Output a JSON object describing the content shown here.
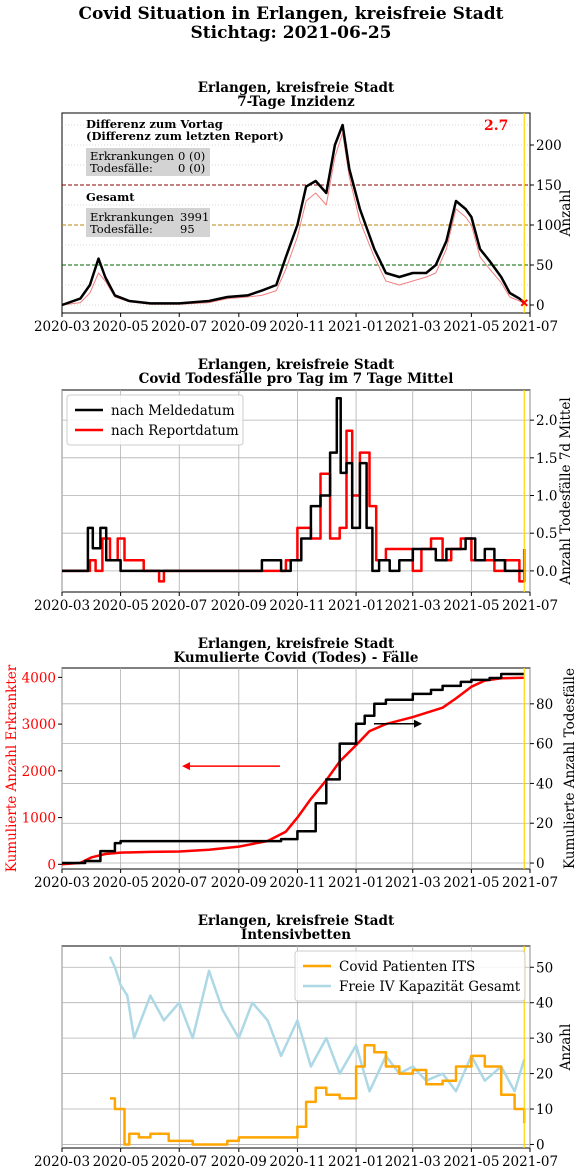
{
  "suptitle": {
    "line1": "Covid Situation in Erlangen, kreisfreie Stadt",
    "line2": "Stichtag: 2021-06-25"
  },
  "x_tick_labels": [
    "2020-03",
    "2020-05",
    "2020-07",
    "2020-09",
    "2020-11",
    "2021-01",
    "2021-03",
    "2021-05",
    "2021-07"
  ],
  "colors": {
    "black": "#000000",
    "red": "#ff0000",
    "light_red": "#f08080",
    "orange": "#ffa500",
    "light_blue": "#add8e6",
    "gold": "#ffd700",
    "box_gray": "#d3d3d3",
    "grid": "#b0b0b0",
    "ref_red": "#8b0000",
    "ref_gold": "#b8860b",
    "ref_green": "#006400"
  },
  "chart_data": [
    {
      "type": "line",
      "title": "Erlangen, kreisfreie Stadt\n7-Tage Inzidenz",
      "xlabel": "",
      "ylabel": "Anzahl",
      "xlim": [
        "2020-03-01",
        "2021-07-01"
      ],
      "ylim": [
        -10,
        240
      ],
      "y_ticks": [
        0,
        50,
        100,
        150,
        200
      ],
      "reference_lines": [
        50,
        100,
        150
      ],
      "grid": "y",
      "annotations": {
        "diff_title": "Differenz zum Vortag\n(Differenz zum letzten Report)",
        "diff_rows": [
          [
            "Erkrankungen",
            "0 (0)"
          ],
          [
            "Todesfälle:",
            "0 (0)"
          ]
        ],
        "total_title": "Gesamt",
        "total_rows": [
          [
            "Erkrankungen",
            "3991"
          ],
          [
            "Todesfälle:",
            "95"
          ]
        ],
        "current_value": "2.7",
        "current_marker": "x"
      },
      "series": [
        {
          "name": "",
          "color": "black",
          "x": [
            "2020-03-01",
            "2020-03-20",
            "2020-03-30",
            "2020-04-08",
            "2020-04-15",
            "2020-04-25",
            "2020-05-10",
            "2020-06-01",
            "2020-07-01",
            "2020-08-01",
            "2020-08-20",
            "2020-09-10",
            "2020-09-25",
            "2020-10-10",
            "2020-10-20",
            "2020-11-01",
            "2020-11-10",
            "2020-11-20",
            "2020-12-01",
            "2020-12-10",
            "2020-12-18",
            "2020-12-25",
            "2021-01-05",
            "2021-01-20",
            "2021-02-01",
            "2021-02-15",
            "2021-03-01",
            "2021-03-15",
            "2021-03-25",
            "2021-04-05",
            "2021-04-15",
            "2021-04-25",
            "2021-05-01",
            "2021-05-10",
            "2021-05-20",
            "2021-06-01",
            "2021-06-10",
            "2021-06-20",
            "2021-06-25"
          ],
          "values": [
            0,
            8,
            25,
            58,
            35,
            12,
            5,
            2,
            2,
            5,
            10,
            12,
            18,
            25,
            60,
            100,
            148,
            155,
            140,
            200,
            225,
            170,
            120,
            70,
            40,
            35,
            40,
            40,
            50,
            80,
            130,
            120,
            110,
            70,
            55,
            35,
            15,
            8,
            3
          ]
        },
        {
          "name": "",
          "color": "light_red",
          "x": [
            "2020-03-01",
            "2020-03-20",
            "2020-03-30",
            "2020-04-08",
            "2020-04-15",
            "2020-04-25",
            "2020-05-10",
            "2020-06-01",
            "2020-07-01",
            "2020-08-01",
            "2020-08-20",
            "2020-09-10",
            "2020-09-25",
            "2020-10-10",
            "2020-10-20",
            "2020-11-01",
            "2020-11-10",
            "2020-11-20",
            "2020-12-01",
            "2020-12-10",
            "2020-12-18",
            "2020-12-25",
            "2021-01-05",
            "2021-01-20",
            "2021-02-01",
            "2021-02-15",
            "2021-03-01",
            "2021-03-15",
            "2021-03-25",
            "2021-04-05",
            "2021-04-15",
            "2021-04-25",
            "2021-05-01",
            "2021-05-10",
            "2021-05-20",
            "2021-06-01",
            "2021-06-10",
            "2021-06-20",
            "2021-06-25"
          ],
          "values": [
            0,
            3,
            15,
            40,
            30,
            10,
            4,
            1,
            1,
            3,
            8,
            10,
            12,
            18,
            45,
            85,
            130,
            140,
            125,
            185,
            215,
            160,
            105,
            60,
            30,
            25,
            30,
            35,
            40,
            70,
            120,
            110,
            100,
            60,
            45,
            28,
            10,
            5,
            2
          ]
        }
      ]
    },
    {
      "type": "line",
      "title": "Erlangen, kreisfreie Stadt\nCovid Todesfälle pro Tag im 7 Tage Mittel",
      "xlabel": "",
      "ylabel": "Anzahl Todesfälle 7d Mittel",
      "xlim": [
        "2020-03-01",
        "2021-07-01"
      ],
      "ylim": [
        -0.28,
        2.4
      ],
      "y_ticks": [
        0.0,
        0.5,
        1.0,
        1.5,
        2.0
      ],
      "y_tick_labels": [
        "0.0",
        "0.5",
        "1.0",
        "1.5",
        "2.0"
      ],
      "grid": "both",
      "legend": "top-left",
      "series": [
        {
          "name": "nach Meldedatum",
          "color": "black",
          "x": [
            "2020-03-01",
            "2020-03-28",
            "2020-04-02",
            "2020-04-10",
            "2020-04-16",
            "2020-04-22",
            "2020-05-01",
            "2020-09-15",
            "2020-09-25",
            "2020-10-15",
            "2020-10-25",
            "2020-11-05",
            "2020-11-15",
            "2020-11-25",
            "2020-12-05",
            "2020-12-12",
            "2020-12-16",
            "2020-12-22",
            "2020-12-28",
            "2021-01-05",
            "2021-01-12",
            "2021-01-18",
            "2021-01-25",
            "2021-02-05",
            "2021-02-15",
            "2021-03-01",
            "2021-03-15",
            "2021-03-25",
            "2021-04-05",
            "2021-04-15",
            "2021-04-25",
            "2021-05-05",
            "2021-05-15",
            "2021-05-25",
            "2021-06-05",
            "2021-06-15",
            "2021-06-25"
          ],
          "values": [
            0,
            0.57,
            0.3,
            0.57,
            0.14,
            0.14,
            0,
            0,
            0.14,
            0,
            0.14,
            0.43,
            0.86,
            1.0,
            1.57,
            2.29,
            1.3,
            1.43,
            0.57,
            1.43,
            0.57,
            0,
            0.14,
            0,
            0.14,
            0.29,
            0.29,
            0.14,
            0.29,
            0.29,
            0.43,
            0.14,
            0.29,
            0.14,
            0,
            0,
            0
          ]
        },
        {
          "name": "nach Reportdatum",
          "color": "red",
          "x": [
            "2020-03-01",
            "2020-03-20",
            "2020-03-30",
            "2020-04-05",
            "2020-04-12",
            "2020-04-20",
            "2020-04-28",
            "2020-05-05",
            "2020-05-20",
            "2020-05-25",
            "2020-06-01",
            "2020-06-10",
            "2020-06-15",
            "2020-09-20",
            "2020-10-01",
            "2020-10-20",
            "2020-11-01",
            "2020-11-15",
            "2020-11-25",
            "2020-12-05",
            "2020-12-15",
            "2020-12-22",
            "2020-12-28",
            "2021-01-05",
            "2021-01-15",
            "2021-01-22",
            "2021-02-01",
            "2021-02-15",
            "2021-03-01",
            "2021-03-10",
            "2021-03-20",
            "2021-04-01",
            "2021-04-10",
            "2021-04-20",
            "2021-05-01",
            "2021-05-15",
            "2021-05-25",
            "2021-06-05",
            "2021-06-15",
            "2021-06-20",
            "2021-06-25"
          ],
          "values": [
            0,
            0,
            0.14,
            0,
            0.43,
            0.14,
            0.43,
            0.14,
            0.14,
            0,
            0,
            -0.14,
            0,
            0,
            0,
            0.14,
            0.57,
            0.43,
            1.29,
            0.43,
            0.57,
            1.86,
            1.0,
            1.57,
            0.86,
            0.14,
            0.29,
            0.29,
            0,
            0.29,
            0.43,
            0.14,
            0.29,
            0.43,
            0.14,
            0.14,
            0,
            0.14,
            0.14,
            -0.14,
            0.29
          ]
        }
      ]
    },
    {
      "type": "line",
      "title": "Erlangen, kreisfreie Stadt\nKumulierte Covid (Todes) - Fälle",
      "xlabel": "",
      "ylabel_left": "Kumulierte Anzahl Erkrankter",
      "ylabel_right": "Kumulierte Anzahl Todesfälle",
      "xlim": [
        "2020-03-01",
        "2021-07-01"
      ],
      "ylim_left": [
        -100,
        4200
      ],
      "ylim_right": [
        -3,
        98
      ],
      "y_ticks_left": [
        0,
        1000,
        2000,
        3000,
        4000
      ],
      "y_ticks_right": [
        0,
        20,
        40,
        60,
        80
      ],
      "grid": "both",
      "series": [
        {
          "name": "",
          "axis": "left",
          "color": "red",
          "x": [
            "2020-03-01",
            "2020-03-20",
            "2020-04-01",
            "2020-04-15",
            "2020-05-01",
            "2020-06-01",
            "2020-07-01",
            "2020-08-01",
            "2020-09-01",
            "2020-10-01",
            "2020-10-20",
            "2020-11-01",
            "2020-11-15",
            "2020-12-01",
            "2020-12-15",
            "2021-01-01",
            "2021-01-15",
            "2021-02-01",
            "2021-03-01",
            "2021-04-01",
            "2021-04-15",
            "2021-05-01",
            "2021-05-15",
            "2021-06-01",
            "2021-06-25"
          ],
          "values": [
            0,
            30,
            150,
            220,
            250,
            265,
            275,
            310,
            380,
            500,
            700,
            1000,
            1400,
            1800,
            2200,
            2550,
            2850,
            3000,
            3150,
            3350,
            3550,
            3800,
            3930,
            3980,
            3991
          ]
        },
        {
          "name": "",
          "axis": "right",
          "color": "black",
          "x": [
            "2020-03-01",
            "2020-03-25",
            "2020-04-10",
            "2020-04-25",
            "2020-05-01",
            "2020-09-01",
            "2020-10-15",
            "2020-11-01",
            "2020-11-20",
            "2020-12-01",
            "2020-12-15",
            "2021-01-01",
            "2021-01-10",
            "2021-01-20",
            "2021-02-01",
            "2021-03-01",
            "2021-03-20",
            "2021-04-01",
            "2021-04-20",
            "2021-05-01",
            "2021-05-20",
            "2021-06-01",
            "2021-06-25"
          ],
          "values": [
            0,
            1,
            6,
            10,
            11,
            11,
            12,
            16,
            30,
            42,
            60,
            70,
            74,
            80,
            82,
            85,
            87,
            89,
            91,
            92,
            93,
            95,
            95
          ]
        }
      ],
      "axis_arrows": [
        {
          "color": "red",
          "points_to": "left"
        },
        {
          "color": "black",
          "points_to": "right"
        }
      ]
    },
    {
      "type": "line",
      "title": "Erlangen, kreisfreie Stadt\nIntensivbetten",
      "xlabel": "",
      "ylabel": "Anzahl",
      "xlim": [
        "2020-03-01",
        "2021-07-01"
      ],
      "ylim": [
        -1,
        56
      ],
      "y_ticks": [
        0,
        10,
        20,
        30,
        40,
        50
      ],
      "grid": "both",
      "legend": "top-right",
      "series": [
        {
          "name": "Covid Patienten ITS",
          "color": "orange",
          "x": [
            "2020-04-20",
            "2020-04-25",
            "2020-05-01",
            "2020-05-05",
            "2020-05-10",
            "2020-05-20",
            "2020-06-01",
            "2020-06-20",
            "2020-07-15",
            "2020-08-01",
            "2020-08-20",
            "2020-09-01",
            "2020-09-15",
            "2020-10-01",
            "2020-10-15",
            "2020-11-01",
            "2020-11-10",
            "2020-11-20",
            "2020-12-01",
            "2020-12-15",
            "2021-01-01",
            "2021-01-10",
            "2021-01-20",
            "2021-02-01",
            "2021-02-15",
            "2021-03-01",
            "2021-03-15",
            "2021-04-01",
            "2021-04-15",
            "2021-05-01",
            "2021-05-15",
            "2021-06-01",
            "2021-06-15",
            "2021-06-25"
          ],
          "values": [
            13,
            10,
            10,
            0,
            3,
            2,
            3,
            1,
            0,
            0,
            1,
            2,
            2,
            2,
            2,
            5,
            12,
            16,
            14,
            13,
            22,
            28,
            26,
            22,
            20,
            21,
            17,
            18,
            22,
            25,
            22,
            14,
            10,
            6
          ]
        },
        {
          "name": "Freie IV Kapazität Gesamt",
          "color": "light_blue",
          "x": [
            "2020-04-20",
            "2020-04-25",
            "2020-05-01",
            "2020-05-08",
            "2020-05-15",
            "2020-06-01",
            "2020-06-15",
            "2020-07-01",
            "2020-07-15",
            "2020-08-01",
            "2020-08-15",
            "2020-09-01",
            "2020-09-15",
            "2020-10-01",
            "2020-10-15",
            "2020-11-01",
            "2020-11-15",
            "2020-12-01",
            "2020-12-15",
            "2021-01-01",
            "2021-01-15",
            "2021-02-01",
            "2021-02-15",
            "2021-03-01",
            "2021-03-15",
            "2021-04-01",
            "2021-04-15",
            "2021-05-01",
            "2021-05-15",
            "2021-06-01",
            "2021-06-15",
            "2021-06-25"
          ],
          "values": [
            53,
            50,
            45,
            42,
            30,
            42,
            35,
            40,
            30,
            49,
            38,
            30,
            40,
            35,
            25,
            35,
            22,
            30,
            20,
            28,
            15,
            25,
            20,
            22,
            18,
            20,
            15,
            25,
            18,
            22,
            15,
            24
          ]
        }
      ]
    }
  ]
}
